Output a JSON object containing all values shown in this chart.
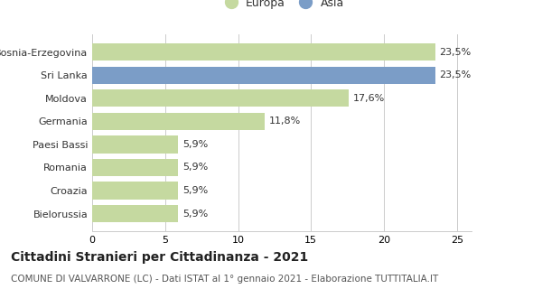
{
  "categories": [
    "Bielorussia",
    "Croazia",
    "Romania",
    "Paesi Bassi",
    "Germania",
    "Moldova",
    "Sri Lanka",
    "Bosnia-Erzegovina"
  ],
  "values": [
    5.9,
    5.9,
    5.9,
    5.9,
    11.8,
    17.6,
    23.5,
    23.5
  ],
  "colors": [
    "#c5d9a0",
    "#c5d9a0",
    "#c5d9a0",
    "#c5d9a0",
    "#c5d9a0",
    "#c5d9a0",
    "#7b9dc7",
    "#c5d9a0"
  ],
  "labels": [
    "5,9%",
    "5,9%",
    "5,9%",
    "5,9%",
    "11,8%",
    "17,6%",
    "23,5%",
    "23,5%"
  ],
  "legend_europa_color": "#c5d9a0",
  "legend_asia_color": "#7b9dc7",
  "xlim": [
    0,
    26
  ],
  "xticks": [
    0,
    5,
    10,
    15,
    20,
    25
  ],
  "title": "Cittadini Stranieri per Cittadinanza - 2021",
  "subtitle": "COMUNE DI VALVARRONE (LC) - Dati ISTAT al 1° gennaio 2021 - Elaborazione TUTTITALIA.IT",
  "bg_color": "#ffffff",
  "grid_color": "#cccccc",
  "bar_height": 0.75,
  "label_fontsize": 8.0,
  "tick_label_fontsize": 8.0,
  "title_fontsize": 10.0,
  "subtitle_fontsize": 7.5,
  "legend_fontsize": 9.0
}
